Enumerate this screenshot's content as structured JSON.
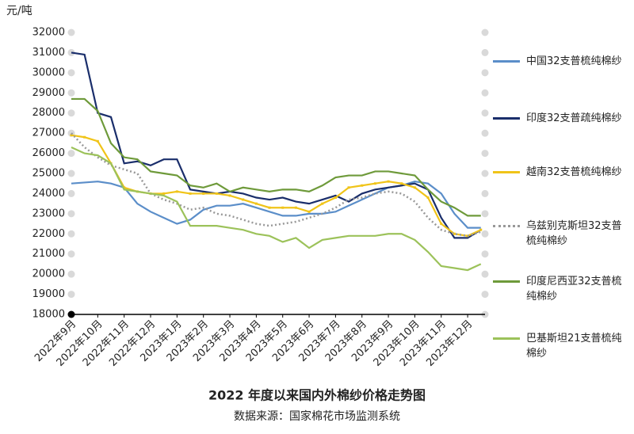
{
  "chart_data": {
    "type": "line",
    "title": "2022 年度以来国内外棉纱价格走势图",
    "subtitle": "数据来源：国家棉花市场监测系统",
    "y_label": "元/吨",
    "categories": [
      "2022年9月",
      null,
      "2022年10月",
      null,
      "2022年11月",
      null,
      "2022年12月",
      null,
      "2023年1月",
      null,
      "2023年2月",
      null,
      "2023年3月",
      null,
      "2023年4月",
      null,
      "2023年5月",
      null,
      "2023年6月",
      null,
      "2023年7月",
      null,
      "2023年8月",
      null,
      "2023年9月",
      null,
      "2023年10月",
      null,
      "2023年11月",
      null,
      "2023年12月",
      null
    ],
    "ylim": [
      18000,
      32000
    ],
    "yticks": [
      18000,
      19000,
      20000,
      21000,
      22000,
      23000,
      24000,
      25000,
      26000,
      27000,
      28000,
      29000,
      30000,
      31000,
      32000
    ],
    "series": [
      {
        "name": "中国32支普梳纯棉纱",
        "color": "#5b8ec9",
        "style": "solid",
        "values": [
          24500,
          24550,
          24600,
          24500,
          24300,
          23500,
          23100,
          22800,
          22500,
          22700,
          23200,
          23400,
          23400,
          23500,
          23300,
          23100,
          22900,
          22900,
          23000,
          23000,
          23100,
          23400,
          23700,
          24000,
          24300,
          24400,
          24600,
          24500,
          24000,
          23000,
          22300,
          22300
        ]
      },
      {
        "name": "印度32支普疏纯棉纱",
        "color": "#1a2e6b",
        "style": "solid",
        "values": [
          31000,
          30900,
          28000,
          27800,
          25500,
          25600,
          25400,
          25700,
          25700,
          24200,
          24100,
          24000,
          24100,
          24000,
          23800,
          23700,
          23800,
          23600,
          23500,
          23700,
          23900,
          23600,
          24000,
          24200,
          24300,
          24400,
          24500,
          24200,
          22800,
          21800,
          21800,
          22200
        ]
      },
      {
        "name": "越南32支普梳纯棉纱",
        "color": "#f0c419",
        "style": "marker",
        "values": [
          26900,
          26800,
          26600,
          25500,
          24300,
          24100,
          24000,
          24000,
          24100,
          24000,
          24000,
          24000,
          23900,
          23700,
          23500,
          23300,
          23300,
          23300,
          23100,
          23500,
          23800,
          24300,
          24400,
          24500,
          24600,
          24500,
          24300,
          23800,
          22500,
          22000,
          21900,
          22200
        ]
      },
      {
        "name": "乌兹别克斯坦32支普梳纯棉纱",
        "color": "#999999",
        "style": "dotted",
        "values": [
          27000,
          26300,
          25800,
          25400,
          25200,
          25000,
          24000,
          23700,
          23500,
          23200,
          23300,
          23000,
          22900,
          22700,
          22500,
          22400,
          22500,
          22600,
          22800,
          23000,
          23300,
          23700,
          23800,
          24000,
          24100,
          24000,
          23600,
          22800,
          22200,
          22000,
          21900,
          22100
        ]
      },
      {
        "name": "印度尼西亚32支普梳纯棉纱",
        "color": "#6e9a3a",
        "style": "solid",
        "values": [
          28700,
          28700,
          28100,
          26500,
          25800,
          25700,
          25100,
          25000,
          24900,
          24400,
          24300,
          24500,
          24100,
          24300,
          24200,
          24100,
          24200,
          24200,
          24100,
          24400,
          24800,
          24900,
          24900,
          25100,
          25100,
          25000,
          24900,
          24200,
          23600,
          23300,
          22900,
          22900
        ]
      },
      {
        "name": "巴基斯坦21支普梳纯棉纱",
        "color": "#9cc25a",
        "style": "solid",
        "values": [
          26300,
          26000,
          25900,
          25500,
          24200,
          24100,
          24000,
          23900,
          23600,
          22400,
          22400,
          22400,
          22300,
          22200,
          22000,
          21900,
          21600,
          21800,
          21300,
          21700,
          21800,
          21900,
          21900,
          21900,
          22000,
          22000,
          21700,
          21100,
          20400,
          20300,
          20200,
          20500
        ]
      }
    ]
  }
}
